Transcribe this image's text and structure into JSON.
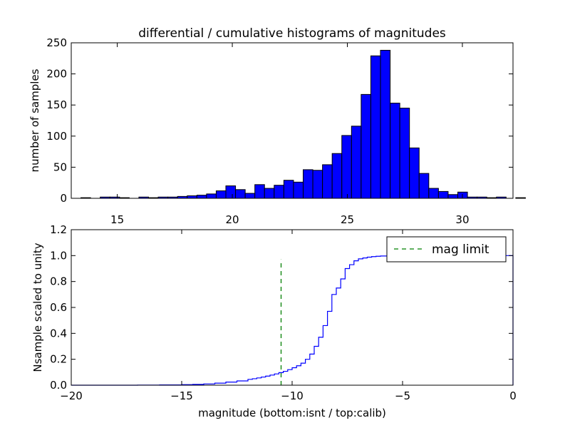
{
  "chart_data": [
    {
      "type": "bar",
      "title": "differential / cumulative histograms of magnitudes",
      "xlabel": "",
      "ylabel": "number of samples",
      "xlim": [
        13.0,
        32.2
      ],
      "ylim": [
        0,
        250
      ],
      "grid": false,
      "x_ticks": [
        "15",
        "20",
        "25",
        "30"
      ],
      "y_ticks": [
        "0",
        "50",
        "100",
        "150",
        "200",
        "250"
      ],
      "bin_width": 0.42,
      "bin_start": 13.0,
      "values": [
        0,
        1,
        0,
        2,
        2,
        1,
        0,
        2,
        1,
        2,
        2,
        3,
        4,
        5,
        7,
        12,
        20,
        14,
        8,
        22,
        16,
        21,
        29,
        26,
        46,
        45,
        54,
        72,
        101,
        116,
        167,
        229,
        238,
        153,
        145,
        81,
        40,
        16,
        11,
        6,
        10,
        2,
        2,
        1,
        2,
        0,
        1,
        0
      ],
      "bar_color": "#0000ff"
    },
    {
      "type": "line",
      "title": "",
      "xlabel": "magnitude (bottom:isnt / top:calib)",
      "ylabel": "Nsample scaled to unity",
      "xlim": [
        -20,
        0
      ],
      "ylim": [
        0,
        1.2
      ],
      "grid": false,
      "x_ticks": [
        "−20",
        "−15",
        "−10",
        "−5",
        "0"
      ],
      "y_ticks": [
        "0.0",
        "0.2",
        "0.4",
        "0.6",
        "0.8",
        "1.0",
        "1.2"
      ],
      "series": [
        {
          "name": "",
          "color": "#0000ff",
          "x": [
            -20,
            -19,
            -18,
            -17,
            -16,
            -15,
            -14.5,
            -14,
            -13.5,
            -13,
            -12.5,
            -12,
            -11.8,
            -11.6,
            -11.4,
            -11.2,
            -11.0,
            -10.8,
            -10.6,
            -10.4,
            -10.2,
            -10.0,
            -9.8,
            -9.6,
            -9.4,
            -9.2,
            -9.0,
            -8.8,
            -8.6,
            -8.4,
            -8.2,
            -8.0,
            -7.8,
            -7.6,
            -7.4,
            -7.2,
            -7.0,
            -6.8,
            -6.6,
            -6.4,
            -6.2,
            -6.0,
            -5.5,
            -5.0,
            -4.0,
            -3.0,
            -2.0,
            -1.0,
            -0.05,
            0.0
          ],
          "y": [
            0.0,
            0.0,
            0.0,
            0.001,
            0.002,
            0.004,
            0.006,
            0.01,
            0.016,
            0.024,
            0.033,
            0.045,
            0.05,
            0.056,
            0.063,
            0.07,
            0.078,
            0.087,
            0.097,
            0.107,
            0.12,
            0.135,
            0.15,
            0.17,
            0.2,
            0.24,
            0.3,
            0.37,
            0.46,
            0.57,
            0.7,
            0.75,
            0.82,
            0.9,
            0.93,
            0.96,
            0.975,
            0.982,
            0.988,
            0.992,
            0.995,
            0.997,
            0.999,
            1.0,
            1.0,
            1.0,
            1.0,
            1.0,
            1.0,
            0.0
          ]
        }
      ],
      "reference_line": {
        "x": -10.5,
        "y_range": [
          0,
          0.97
        ],
        "color": "#008000",
        "style": "dashed"
      },
      "legend": {
        "entry": "mag limit",
        "placement": "top-right"
      }
    }
  ]
}
